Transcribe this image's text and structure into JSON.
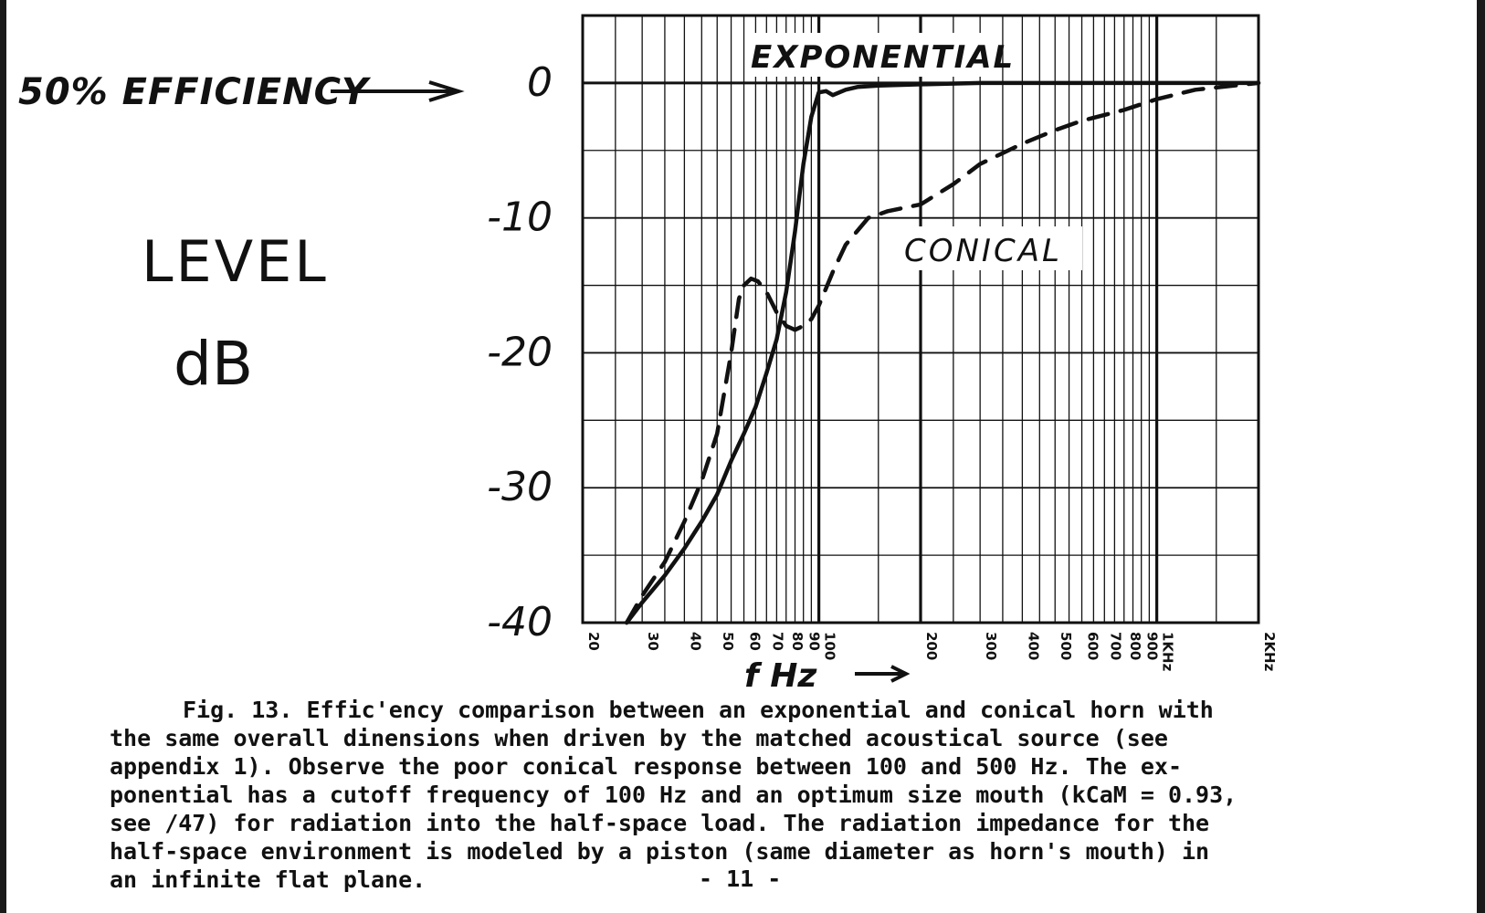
{
  "chart_data": {
    "type": "line",
    "y_axis": {
      "title": "LEVEL",
      "unit": "dB",
      "range": [
        -40,
        5
      ],
      "ticks": [
        0,
        -10,
        -20,
        -30,
        -40
      ],
      "tick_labels": [
        "0",
        "-10",
        "-20",
        "-30",
        "-40"
      ],
      "reference_annotation": "50% EFFICIENCY"
    },
    "x_axis": {
      "title": "f Hz",
      "scale": "log",
      "range": [
        20,
        2000
      ],
      "ticks": [
        20,
        30,
        40,
        50,
        60,
        70,
        80,
        90,
        100,
        200,
        300,
        400,
        500,
        600,
        700,
        800,
        900,
        1000,
        2000
      ],
      "tick_labels": [
        "20",
        "30",
        "40",
        "50",
        "60",
        "70",
        "80",
        "90",
        "100",
        "200",
        "300",
        "400",
        "500",
        "600",
        "700",
        "800",
        "900",
        "1KHz",
        "2KHz"
      ]
    },
    "grid": true,
    "series": [
      {
        "name": "EXPONENTIAL",
        "style": "solid",
        "x": [
          27,
          30,
          35,
          40,
          45,
          50,
          55,
          60,
          65,
          70,
          75,
          80,
          85,
          90,
          95,
          100,
          105,
          110,
          120,
          130,
          150,
          200,
          300,
          500,
          1000,
          2000
        ],
        "y": [
          -40,
          -38.5,
          -36.5,
          -34.5,
          -32.5,
          -30.5,
          -28,
          -26,
          -24,
          -21.5,
          -19,
          -15.5,
          -11,
          -6,
          -2.5,
          -0.7,
          -0.6,
          -0.9,
          -0.5,
          -0.3,
          -0.2,
          -0.1,
          0,
          0,
          0,
          0
        ]
      },
      {
        "name": "CONICAL",
        "style": "dashed",
        "x": [
          27,
          30,
          35,
          40,
          45,
          50,
          55,
          58,
          60,
          63,
          66,
          70,
          75,
          80,
          85,
          90,
          95,
          100,
          110,
          120,
          140,
          160,
          200,
          250,
          300,
          400,
          500,
          600,
          800,
          1000,
          1300,
          2000
        ],
        "y": [
          -40,
          -38,
          -35.5,
          -32.5,
          -29.5,
          -26,
          -20,
          -16,
          -15,
          -14.5,
          -14.7,
          -15.5,
          -17,
          -18,
          -18.3,
          -18,
          -17.5,
          -16.5,
          -14,
          -12,
          -10,
          -9.5,
          -9,
          -7.5,
          -6,
          -4.5,
          -3.5,
          -2.8,
          -2,
          -1.2,
          -0.5,
          0
        ]
      }
    ],
    "annotations": [
      "EXPONENTIAL",
      "CONICAL"
    ]
  },
  "caption": {
    "lines": [
      "Fig. 13.  Effic'ency comparison between an exponential and conical horn with",
      "the same overall dinensions when driven by the matched acoustical source (see",
      "appendix 1).  Observe the poor conical response between 100 and 500 Hz.  The ex-",
      "ponential has a cutoff frequency of 100 Hz and an optimum size mouth (kCaM  = 0.93,",
      "see /47) for radiation into the half-space load.  The radiation impedance for the",
      "half-space environment is modeled by a piston (same diameter as horn's mouth) in",
      "an infinite flat plane."
    ]
  },
  "page_number": "- 11 -"
}
